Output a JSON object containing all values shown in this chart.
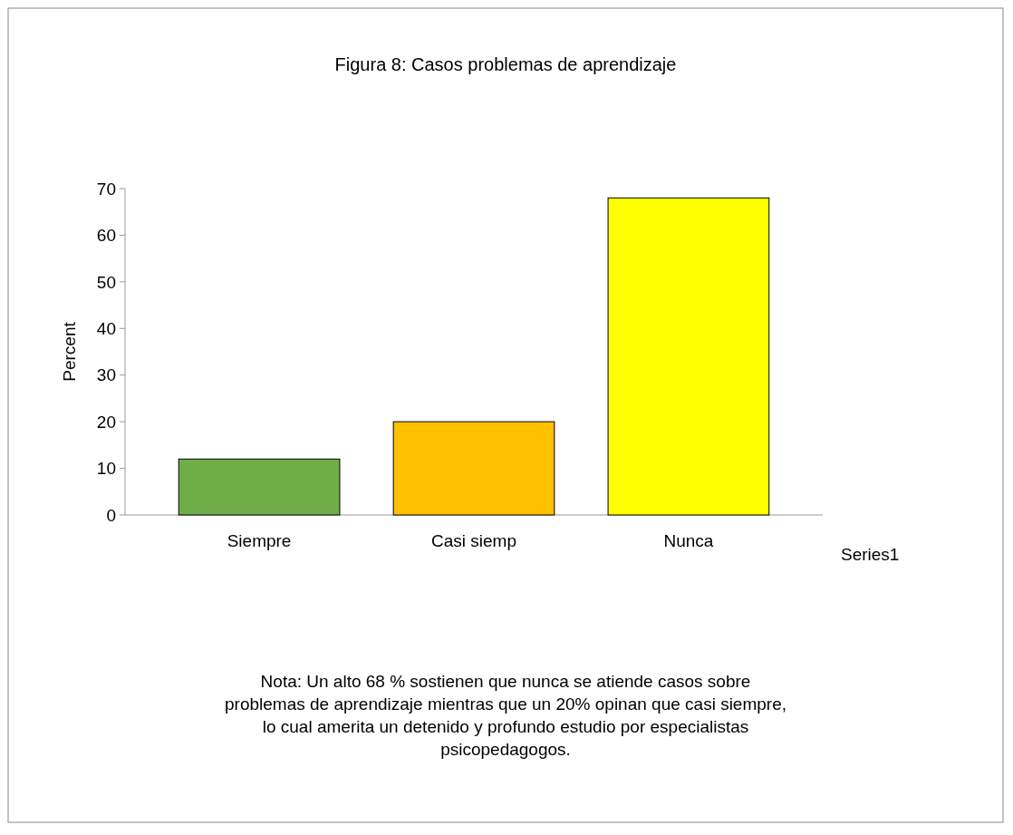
{
  "chart_data": {
    "type": "bar",
    "title": "Figura 8: Casos problemas de  aprendizaje",
    "ylabel": "Percent",
    "categories": [
      "Siempre",
      "Casi siemp",
      "Nunca"
    ],
    "series": [
      {
        "name": "Series1",
        "colors": [
          "#70ad47",
          "#ffc000",
          "#ffff00"
        ],
        "values": [
          12,
          20,
          68
        ]
      }
    ],
    "ylim": [
      0,
      70
    ],
    "yticks": [
      0,
      10,
      20,
      30,
      40,
      50,
      60,
      70
    ],
    "annotations": [
      "Nota: Un alto 68 % sostienen que nunca se atiende casos sobre problemas de aprendizaje mientras que un 20% opinan que casi siempre, lo cual amerita un detenido y profundo estudio por especialistas psicopedagogos."
    ]
  }
}
